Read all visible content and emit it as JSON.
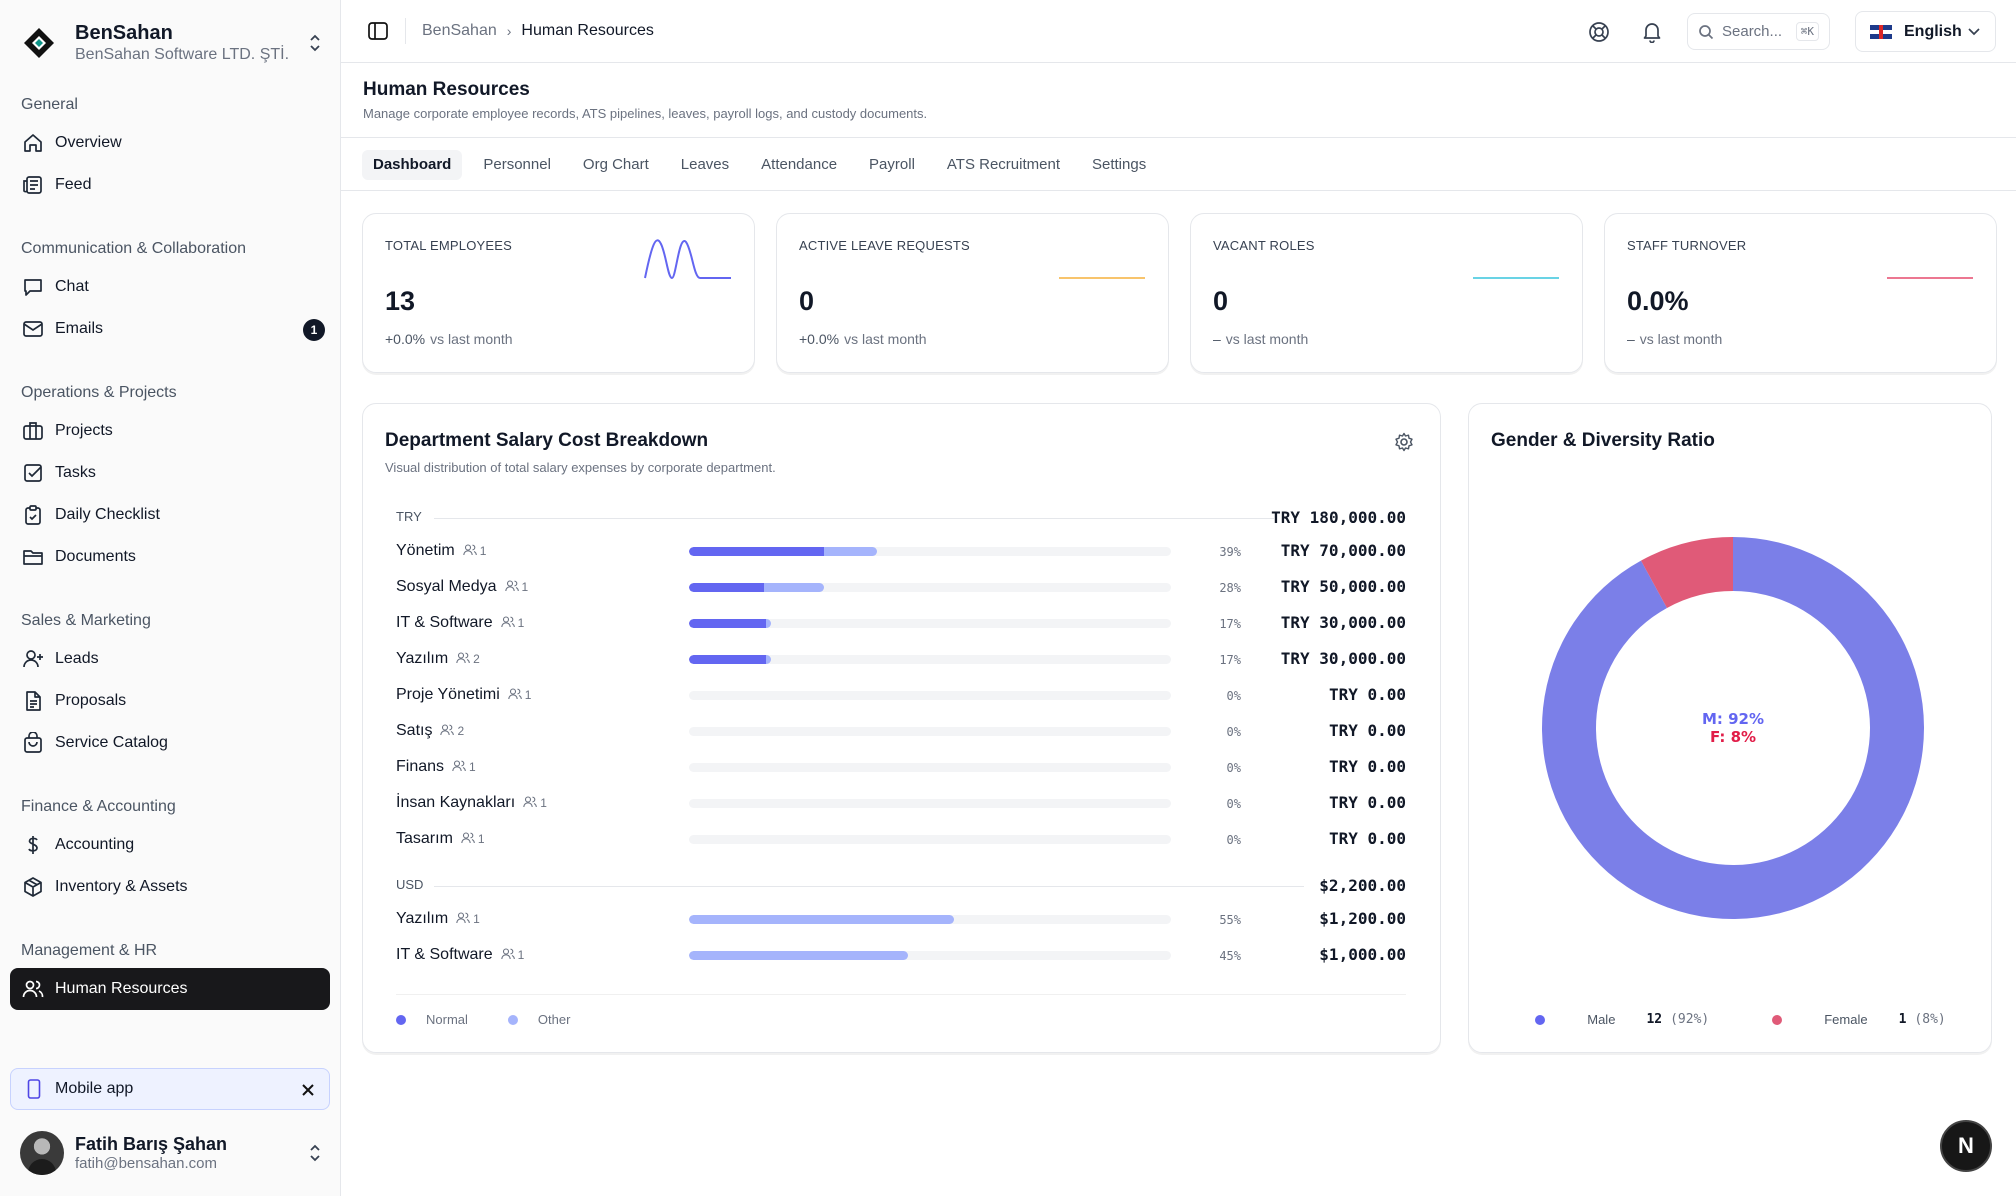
{
  "brand": {
    "name": "BenSahan",
    "subtitle": "BenSahan Software LTD. ŞTİ."
  },
  "sidebar": {
    "groups": [
      {
        "label": "General",
        "items": [
          {
            "label": "Overview",
            "icon": "home-icon"
          },
          {
            "label": "Feed",
            "icon": "newspaper-icon"
          }
        ]
      },
      {
        "label": "Communication & Collaboration",
        "items": [
          {
            "label": "Chat",
            "icon": "chat-icon"
          },
          {
            "label": "Emails",
            "icon": "mail-icon",
            "badge": "1"
          }
        ]
      },
      {
        "label": "Operations & Projects",
        "items": [
          {
            "label": "Projects",
            "icon": "briefcase-icon"
          },
          {
            "label": "Tasks",
            "icon": "check-square-icon"
          },
          {
            "label": "Daily Checklist",
            "icon": "clipboard-check-icon"
          },
          {
            "label": "Documents",
            "icon": "folder-icon"
          }
        ]
      },
      {
        "label": "Sales & Marketing",
        "items": [
          {
            "label": "Leads",
            "icon": "user-plus-icon"
          },
          {
            "label": "Proposals",
            "icon": "file-text-icon"
          },
          {
            "label": "Service Catalog",
            "icon": "shopping-bag-icon"
          }
        ]
      },
      {
        "label": "Finance & Accounting",
        "items": [
          {
            "label": "Accounting",
            "icon": "dollar-icon"
          },
          {
            "label": "Inventory & Assets",
            "icon": "package-icon"
          }
        ]
      },
      {
        "label": "Management & HR",
        "items": [
          {
            "label": "Human Resources",
            "icon": "users-icon",
            "active": true
          }
        ]
      }
    ],
    "mobile_app": "Mobile app"
  },
  "user": {
    "name": "Fatih Barış Şahan",
    "email": "fatih@bensahan.com"
  },
  "topbar": {
    "crumb_root": "BenSahan",
    "crumb_current": "Human Resources",
    "search_placeholder": "Search...",
    "search_shortcut": "⌘K",
    "language": "English"
  },
  "page": {
    "title": "Human Resources",
    "subtitle": "Manage corporate employee records, ATS pipelines, leaves, payroll logs, and custody documents."
  },
  "tabs": [
    "Dashboard",
    "Personnel",
    "Org Chart",
    "Leaves",
    "Attendance",
    "Payroll",
    "ATS Recruitment",
    "Settings"
  ],
  "stats": [
    {
      "label": "TOTAL EMPLOYEES",
      "value": "13",
      "delta": "+0.0%",
      "delta_suffix": "vs last month",
      "spark_color": "#6366f1"
    },
    {
      "label": "ACTIVE LEAVE REQUESTS",
      "value": "0",
      "delta": "+0.0%",
      "delta_suffix": "vs last month",
      "spark_color": "#f59e0b"
    },
    {
      "label": "VACANT ROLES",
      "value": "0",
      "delta": "–",
      "delta_suffix": "vs last month",
      "spark_color": "#06b6d4"
    },
    {
      "label": "STAFF TURNOVER",
      "value": "0.0%",
      "delta": "–",
      "delta_suffix": "vs last month",
      "spark_color": "#e11d48"
    }
  ],
  "salary": {
    "title": "Department Salary Cost Breakdown",
    "subtitle": "Visual distribution of total salary expenses by corporate department.",
    "groups": [
      {
        "currency": "TRY",
        "total": "TRY 180,000.00",
        "rows": [
          {
            "dept": "Yönetim",
            "count": "1",
            "normal": 0.28,
            "other": 0.11,
            "pct": "39%",
            "amount": "TRY 70,000.00"
          },
          {
            "dept": "Sosyal Medya",
            "count": "1",
            "normal": 0.155,
            "other": 0.125,
            "pct": "28%",
            "amount": "TRY 50,000.00"
          },
          {
            "dept": "IT & Software",
            "count": "1",
            "normal": 0.16,
            "other": 0.01,
            "pct": "17%",
            "amount": "TRY 30,000.00"
          },
          {
            "dept": "Yazılım",
            "count": "2",
            "normal": 0.16,
            "other": 0.01,
            "pct": "17%",
            "amount": "TRY 30,000.00"
          },
          {
            "dept": "Proje Yönetimi",
            "count": "1",
            "normal": 0,
            "other": 0,
            "pct": "0%",
            "amount": "TRY 0.00"
          },
          {
            "dept": "Satış",
            "count": "2",
            "normal": 0,
            "other": 0,
            "pct": "0%",
            "amount": "TRY 0.00"
          },
          {
            "dept": "Finans",
            "count": "1",
            "normal": 0,
            "other": 0,
            "pct": "0%",
            "amount": "TRY 0.00"
          },
          {
            "dept": "İnsan Kaynakları",
            "count": "1",
            "normal": 0,
            "other": 0,
            "pct": "0%",
            "amount": "TRY 0.00"
          },
          {
            "dept": "Tasarım",
            "count": "1",
            "normal": 0,
            "other": 0,
            "pct": "0%",
            "amount": "TRY 0.00"
          }
        ]
      },
      {
        "currency": "USD",
        "total": "$2,200.00",
        "rows": [
          {
            "dept": "Yazılım",
            "count": "1",
            "normal": 0,
            "other": 0.55,
            "pct": "55%",
            "amount": "$1,200.00"
          },
          {
            "dept": "IT & Software",
            "count": "1",
            "normal": 0,
            "other": 0.455,
            "pct": "45%",
            "amount": "$1,000.00"
          }
        ]
      }
    ],
    "legend": [
      {
        "label": "Normal",
        "color": "#6366f1"
      },
      {
        "label": "Other",
        "color": "#a5b4fc"
      }
    ]
  },
  "gender": {
    "title": "Gender & Diversity Ratio",
    "center_male": "M: 92%",
    "center_female": "F: 8%",
    "male": {
      "label": "Male",
      "count": "12",
      "pct": "(92%)",
      "fraction": 0.92,
      "color": "#7b7fe8"
    },
    "female": {
      "label": "Female",
      "count": "1",
      "pct": "(8%)",
      "fraction": 0.08,
      "color": "#e05a78"
    }
  },
  "fab_label": "N"
}
